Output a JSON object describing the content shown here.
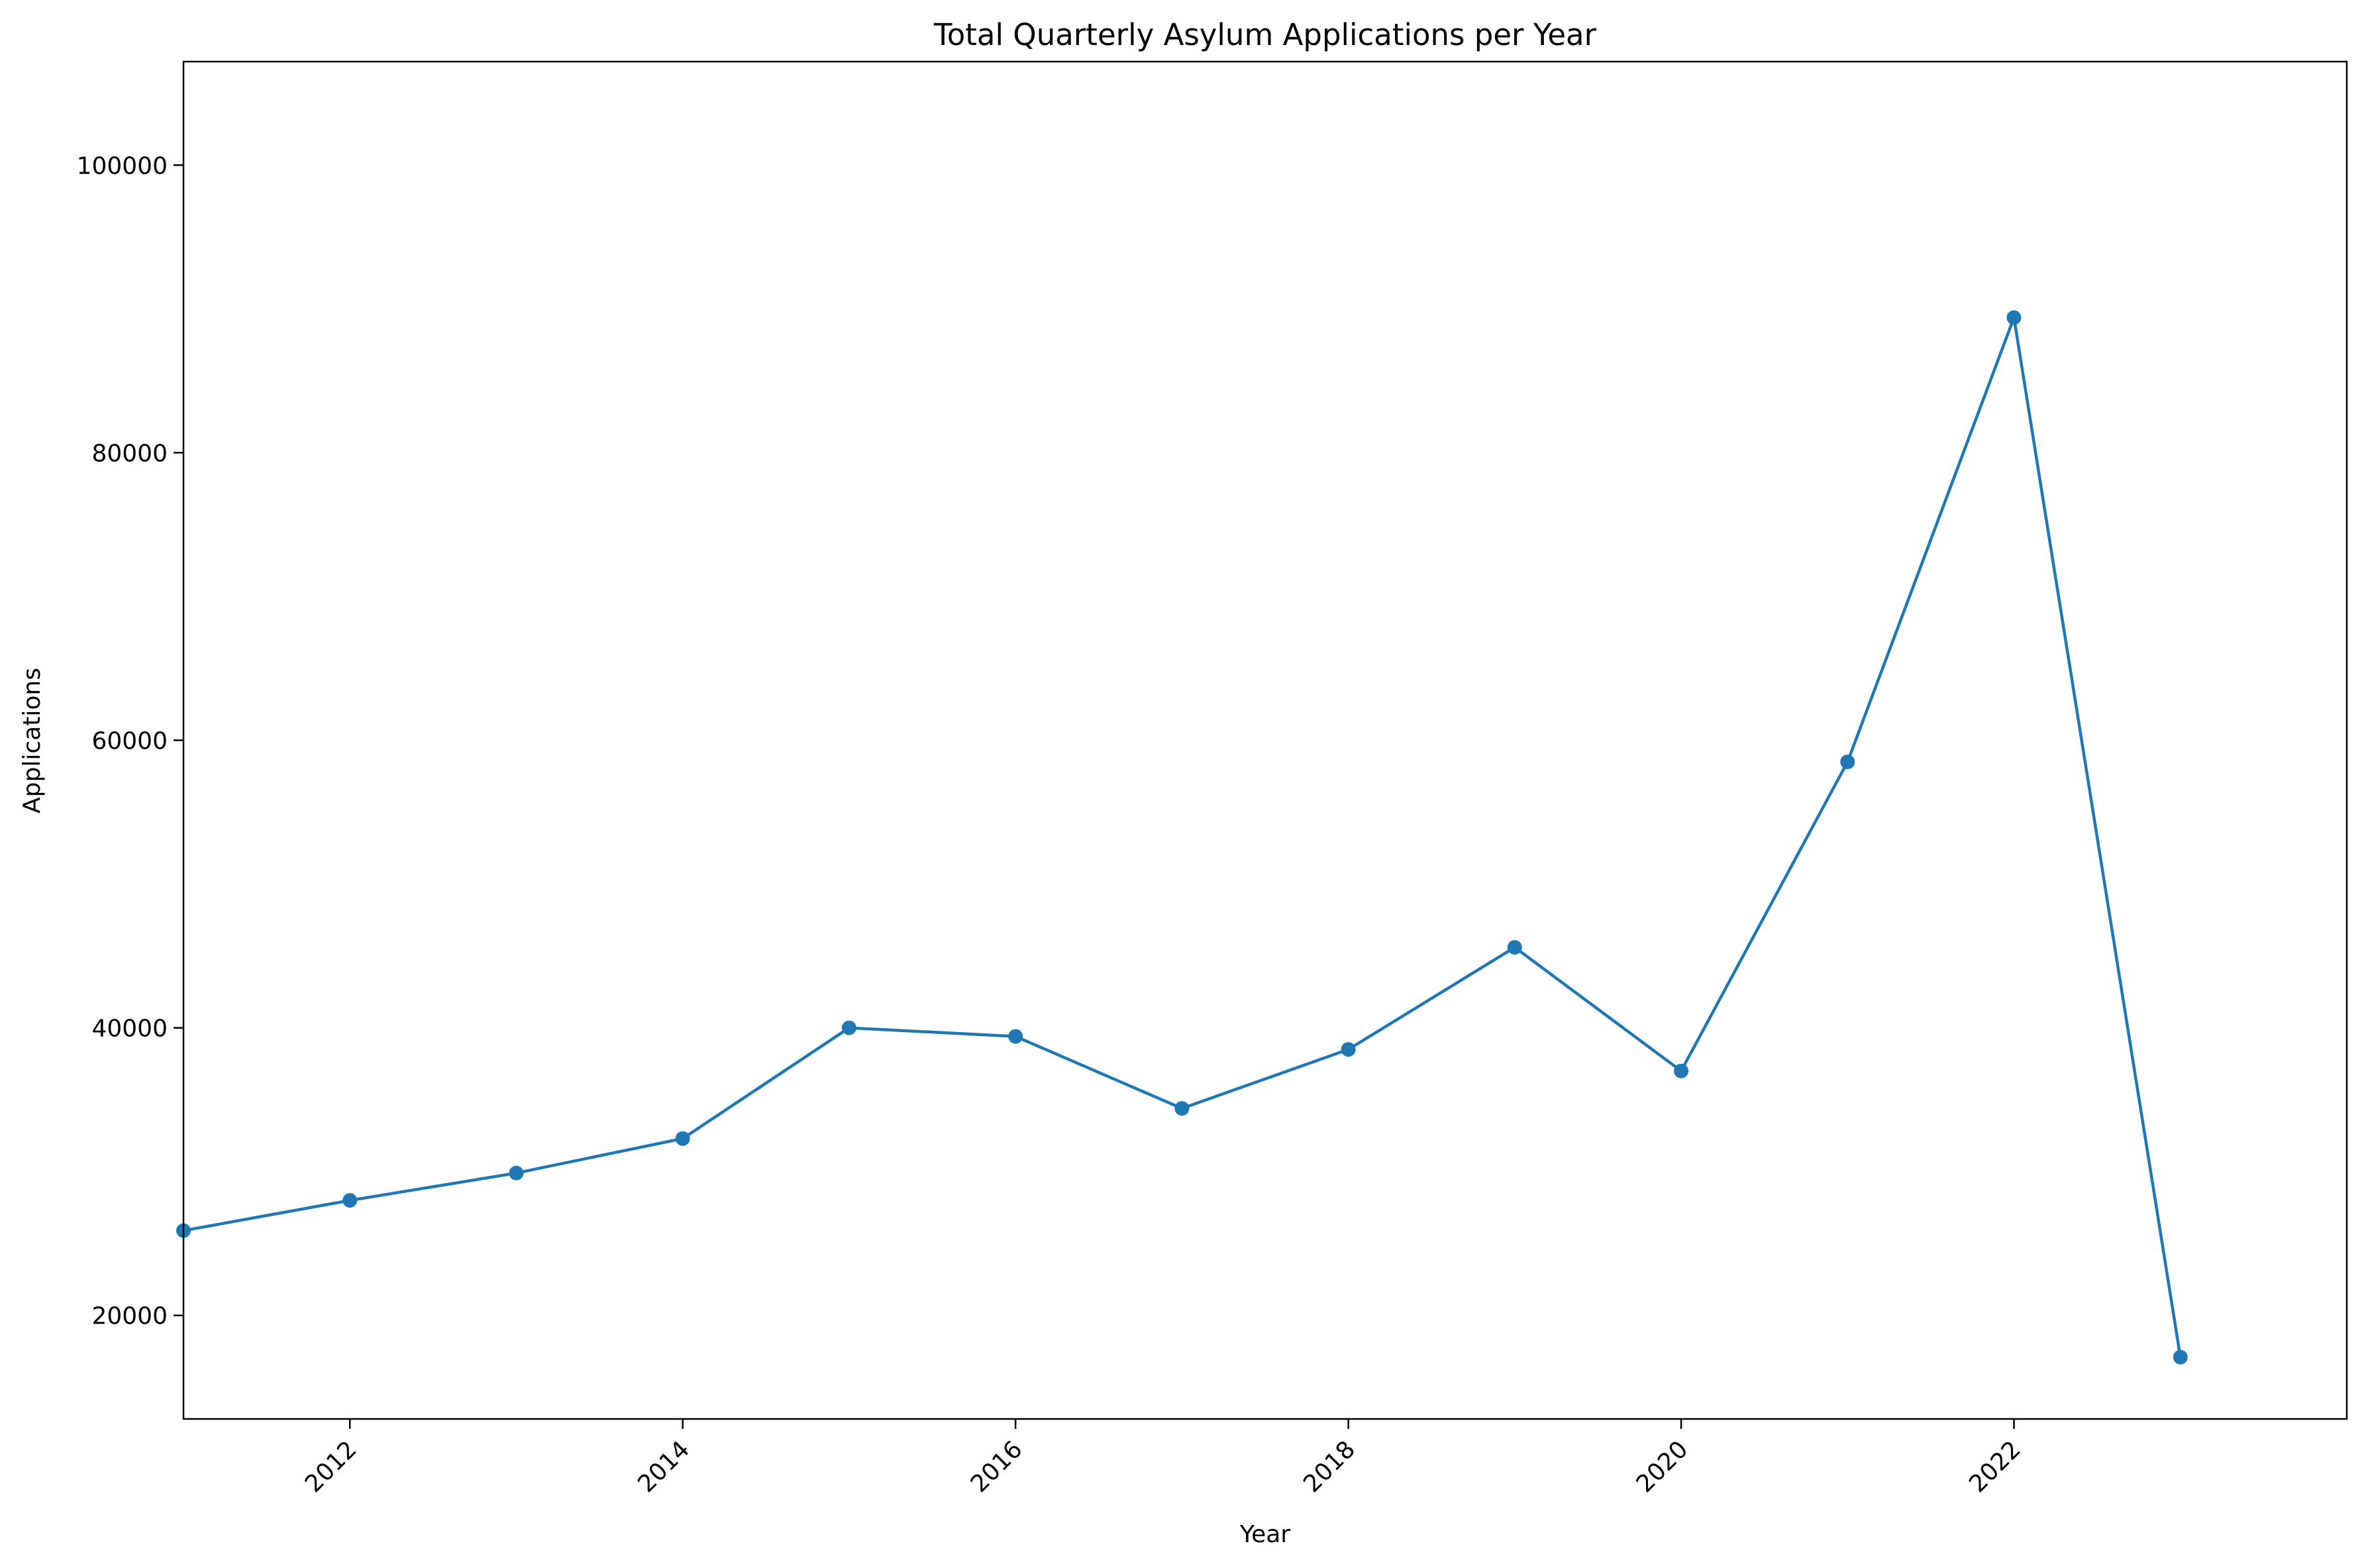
{
  "chart_data": {
    "type": "line",
    "title": "Total Quarterly Asylum Applications per Year",
    "xlabel": "Year",
    "ylabel": "Applications",
    "xlim": [
      2011,
      2024
    ],
    "ylim": [
      12800,
      107200
    ],
    "grid": false,
    "x_ticks": [
      "2012",
      "2014",
      "2016",
      "2018",
      "2020",
      "2022"
    ],
    "y_ticks": [
      "20000",
      "40000",
      "60000",
      "80000",
      "100000"
    ],
    "colors": {
      "series": "#1f77b4"
    },
    "series": [
      {
        "x": [
          2011,
          2012,
          2013,
          2014,
          2015,
          2016,
          2017,
          2018,
          2019,
          2020,
          2021,
          2022,
          2023
        ],
        "values": [
          25900,
          28000,
          29900,
          32300,
          40000,
          39400,
          34400,
          38500,
          45600,
          37000,
          58500,
          89400,
          17100
        ]
      }
    ]
  }
}
